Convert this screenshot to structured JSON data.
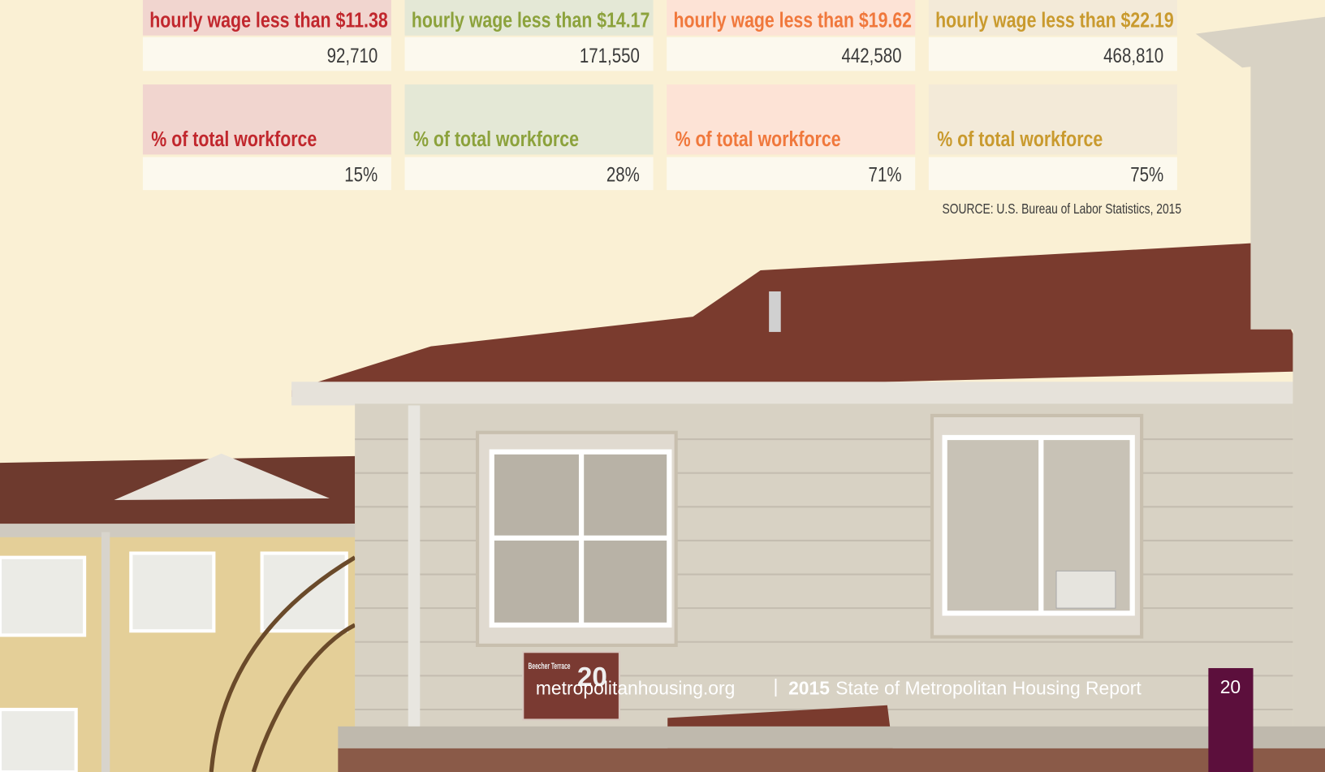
{
  "table": {
    "columns": [
      {
        "header": "hourly wage less than $11.38",
        "count": "92,710",
        "pct_header": "% of total workforce",
        "pct": "15%",
        "color": "#c1272d",
        "header_bg": "#f1d5cf"
      },
      {
        "header": "hourly wage less than $14.17",
        "count": "171,550",
        "pct_header": "% of total workforce",
        "pct": "28%",
        "color": "#8ca23c",
        "header_bg": "#e4e8d6"
      },
      {
        "header": "hourly wage less than $19.62",
        "count": "442,580",
        "pct_header": "% of total workforce",
        "pct": "71%",
        "color": "#f0783c",
        "header_bg": "#fde3d6"
      },
      {
        "header": "hourly wage less than $22.19",
        "count": "468,810",
        "pct_header": "% of total workforce",
        "pct": "75%",
        "color": "#c99a2e",
        "header_bg": "#f3ead8"
      }
    ],
    "source": "SOURCE: U.S. Bureau of Labor Statistics, 2015"
  },
  "photo": {
    "sign_name": "Beecher Terrace",
    "sign_number": "20"
  },
  "footer": {
    "site": "metropolitanhousing.org",
    "separator": "|",
    "year": "2015",
    "report": "State of Metropolitan Housing Report",
    "page": "20"
  }
}
